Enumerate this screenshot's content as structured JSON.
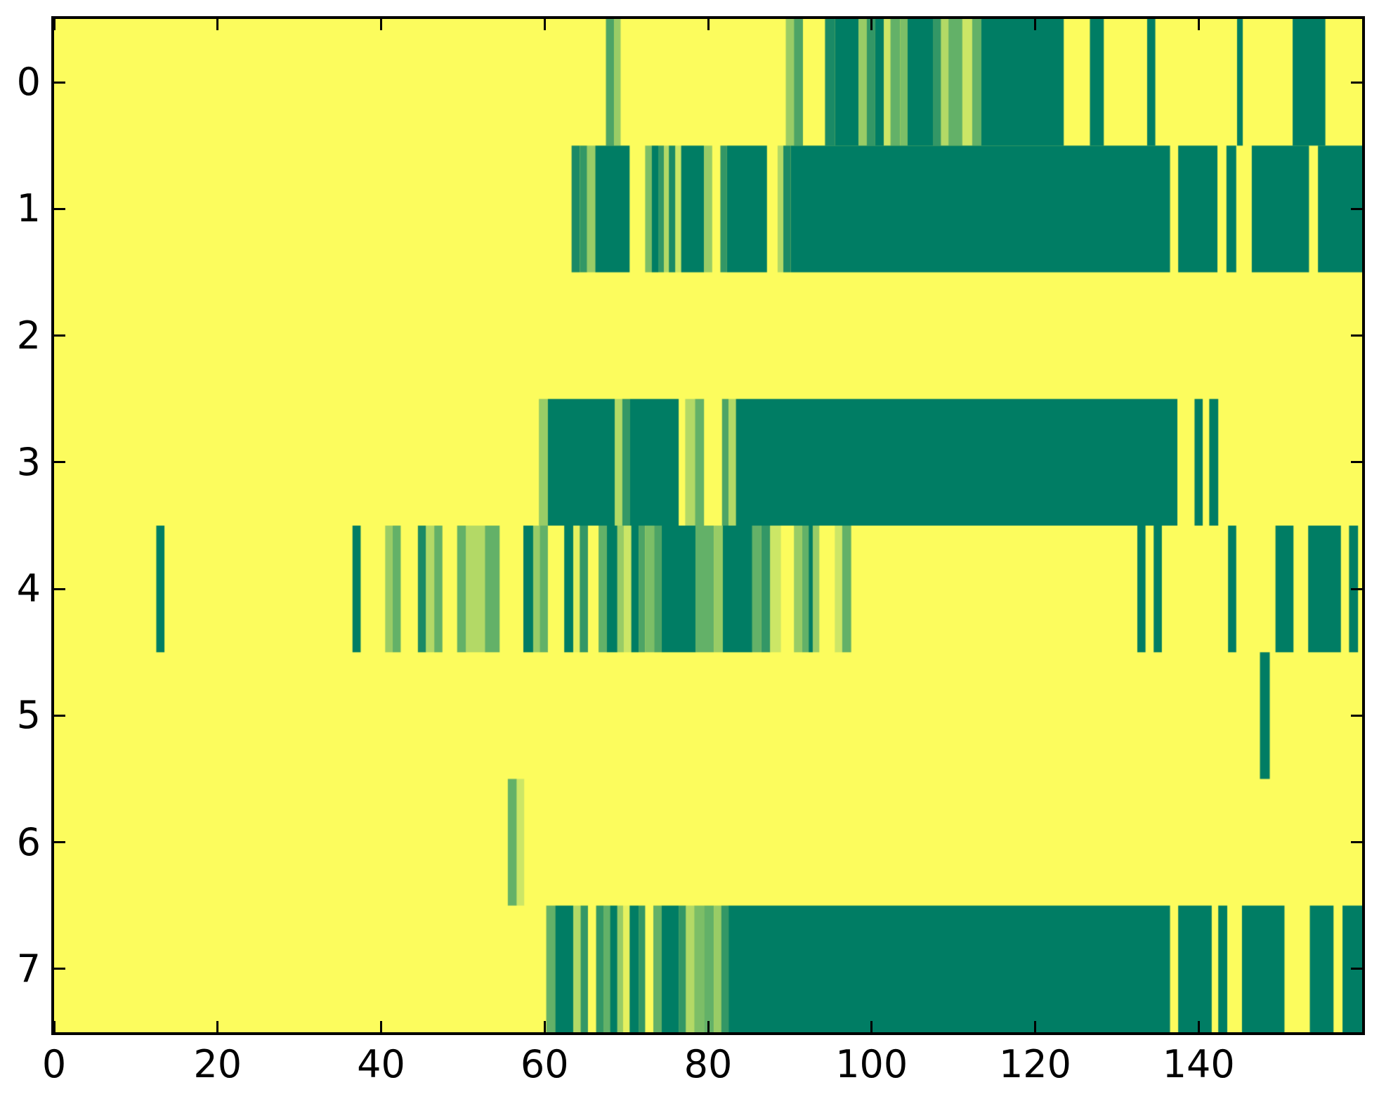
{
  "figure": {
    "background_color": "#ffffff",
    "axes_border_color": "#000000"
  },
  "chart_data": {
    "type": "heatmap",
    "title": "",
    "xlabel": "",
    "ylabel": "",
    "x_range": [
      0,
      160
    ],
    "n_rows": 8,
    "grid": false,
    "legend": "none",
    "x_tick_values": [
      0,
      20,
      40,
      60,
      80,
      100,
      120,
      140
    ],
    "x_tick_labels": [
      "0",
      "20",
      "40",
      "60",
      "80",
      "100",
      "120",
      "140"
    ],
    "y_tick_values": [
      0,
      1,
      2,
      3,
      4,
      5,
      6,
      7
    ],
    "y_tick_labels": [
      "0",
      "1",
      "2",
      "3",
      "4",
      "5",
      "6",
      "7"
    ],
    "colormap": "summer",
    "background_value_color": "#fcfc5d",
    "level_colors": {
      "v00": "#007d64",
      "v01": "#1a8a66",
      "v02": "#339766",
      "v03": "#4da466",
      "v04": "#63b168",
      "v05": "#7cbe67",
      "v06": "#99cc66",
      "v07": "#b3d966",
      "v08": "#cce666",
      "v09": "#e6f15f"
    },
    "rows": [
      {
        "y": 0,
        "segments": [
          [
            67.5,
            68.5,
            "v03"
          ],
          [
            68.5,
            69.3,
            "v06"
          ],
          [
            89.5,
            90.5,
            "v06"
          ],
          [
            90.5,
            91.6,
            "v03"
          ],
          [
            94.3,
            95.5,
            "v01"
          ],
          [
            95.5,
            98.4,
            "v00"
          ],
          [
            98.4,
            99.4,
            "v06"
          ],
          [
            99.4,
            100.4,
            "v02"
          ],
          [
            100.4,
            101.5,
            "v00"
          ],
          [
            101.5,
            102.3,
            "v08"
          ],
          [
            102.3,
            103.5,
            "v04"
          ],
          [
            103.5,
            104.4,
            "v05"
          ],
          [
            104.4,
            107.5,
            "v00"
          ],
          [
            107.5,
            108.5,
            "v02"
          ],
          [
            108.5,
            109.4,
            "v07"
          ],
          [
            109.4,
            111.1,
            "v04"
          ],
          [
            111.1,
            112.3,
            "v08"
          ],
          [
            112.3,
            113.4,
            "v04"
          ],
          [
            113.4,
            123.5,
            "v00"
          ],
          [
            126.7,
            128.4,
            "v00"
          ],
          [
            133.7,
            134.7,
            "v00"
          ],
          [
            144.7,
            145.4,
            "v00"
          ],
          [
            151.5,
            155.5,
            "v00"
          ]
        ]
      },
      {
        "y": 1,
        "segments": [
          [
            63.3,
            64.3,
            "v01"
          ],
          [
            64.3,
            65.2,
            "v02"
          ],
          [
            65.2,
            66.2,
            "v06"
          ],
          [
            66.2,
            70.4,
            "v00"
          ],
          [
            72.3,
            73.1,
            "v05"
          ],
          [
            73.1,
            73.9,
            "v00"
          ],
          [
            73.9,
            74.6,
            "v02"
          ],
          [
            74.6,
            75.2,
            "v07"
          ],
          [
            75.2,
            76.0,
            "v01"
          ],
          [
            76.0,
            76.7,
            "v08"
          ],
          [
            76.7,
            79.5,
            "v00"
          ],
          [
            79.5,
            80.5,
            "v06"
          ],
          [
            81.5,
            82.3,
            "v02"
          ],
          [
            82.3,
            87.2,
            "v00"
          ],
          [
            88.5,
            89.2,
            "v07"
          ],
          [
            89.2,
            90.1,
            "v01"
          ],
          [
            90.1,
            136.5,
            "v00"
          ],
          [
            137.5,
            142.3,
            "v00"
          ],
          [
            143.4,
            144.6,
            "v00"
          ],
          [
            146.5,
            153.5,
            "v00"
          ],
          [
            154.6,
            160,
            "v00"
          ]
        ]
      },
      {
        "y": 2,
        "segments": []
      },
      {
        "y": 3,
        "segments": [
          [
            59.3,
            60.4,
            "v06"
          ],
          [
            60.4,
            68.6,
            "v00"
          ],
          [
            68.6,
            69.5,
            "v07"
          ],
          [
            69.5,
            70.4,
            "v02"
          ],
          [
            70.4,
            76.4,
            "v00"
          ],
          [
            77.2,
            78.4,
            "v07"
          ],
          [
            78.4,
            79.5,
            "v04"
          ],
          [
            81.7,
            82.5,
            "v03"
          ],
          [
            82.5,
            83.4,
            "v07"
          ],
          [
            83.4,
            137.4,
            "v00"
          ],
          [
            139.5,
            140.5,
            "v00"
          ],
          [
            141.3,
            142.4,
            "v00"
          ]
        ]
      },
      {
        "y": 4,
        "segments": [
          [
            12.5,
            13.5,
            "v00"
          ],
          [
            36.5,
            37.5,
            "v00"
          ],
          [
            40.5,
            41.4,
            "v06"
          ],
          [
            41.4,
            42.4,
            "v04"
          ],
          [
            44.5,
            45.5,
            "v01"
          ],
          [
            45.5,
            46.5,
            "v07"
          ],
          [
            46.5,
            47.5,
            "v04"
          ],
          [
            49.3,
            50.4,
            "v04"
          ],
          [
            50.4,
            52.7,
            "v07"
          ],
          [
            52.7,
            54.5,
            "v04"
          ],
          [
            57.4,
            58.6,
            "v00"
          ],
          [
            58.6,
            59.4,
            "v06"
          ],
          [
            59.4,
            60.4,
            "v04"
          ],
          [
            62.4,
            63.5,
            "v00"
          ],
          [
            63.5,
            64.3,
            "v09"
          ],
          [
            64.3,
            65.3,
            "v02"
          ],
          [
            66.6,
            67.6,
            "v04"
          ],
          [
            67.6,
            68.9,
            "v00"
          ],
          [
            68.9,
            69.7,
            "v06"
          ],
          [
            69.7,
            70.6,
            "v08"
          ],
          [
            70.6,
            71.5,
            "v00"
          ],
          [
            71.5,
            72.3,
            "v03"
          ],
          [
            72.3,
            73.4,
            "v05"
          ],
          [
            73.4,
            74.3,
            "v03"
          ],
          [
            74.3,
            78.5,
            "v00"
          ],
          [
            78.5,
            80.7,
            "v04"
          ],
          [
            80.7,
            81.8,
            "v06"
          ],
          [
            81.8,
            85.4,
            "v00"
          ],
          [
            85.4,
            86.5,
            "v04"
          ],
          [
            86.5,
            87.6,
            "v02"
          ],
          [
            87.6,
            88.9,
            "v08"
          ],
          [
            90.5,
            91.5,
            "v06"
          ],
          [
            91.5,
            92.3,
            "v04"
          ],
          [
            92.3,
            92.8,
            "v00"
          ],
          [
            92.8,
            93.6,
            "v06"
          ],
          [
            95.5,
            96.4,
            "v08"
          ],
          [
            96.4,
            97.5,
            "v04"
          ],
          [
            132.5,
            133.5,
            "v00"
          ],
          [
            134.5,
            135.5,
            "v00"
          ],
          [
            143.6,
            144.6,
            "v00"
          ],
          [
            149.4,
            151.6,
            "v00"
          ],
          [
            153.4,
            157.4,
            "v00"
          ],
          [
            158.4,
            159.5,
            "v00"
          ]
        ]
      },
      {
        "y": 5,
        "segments": [
          [
            147.5,
            148.7,
            "v00"
          ]
        ]
      },
      {
        "y": 6,
        "segments": [
          [
            55.5,
            56.6,
            "v04"
          ],
          [
            56.6,
            57.5,
            "v08"
          ]
        ]
      },
      {
        "y": 7,
        "segments": [
          [
            60.2,
            61.3,
            "v04"
          ],
          [
            61.3,
            63.5,
            "v00"
          ],
          [
            63.5,
            64.4,
            "v07"
          ],
          [
            64.4,
            65.3,
            "v02"
          ],
          [
            66.3,
            67.2,
            "v02"
          ],
          [
            67.2,
            68.0,
            "v04"
          ],
          [
            68.0,
            68.9,
            "v00"
          ],
          [
            68.9,
            69.6,
            "v06"
          ],
          [
            69.6,
            70.4,
            "v09"
          ],
          [
            70.4,
            71.5,
            "v00"
          ],
          [
            71.5,
            72.3,
            "v02"
          ],
          [
            73.3,
            74.3,
            "v04"
          ],
          [
            74.3,
            76.4,
            "v00"
          ],
          [
            76.4,
            77.3,
            "v02"
          ],
          [
            77.3,
            78.3,
            "v07"
          ],
          [
            78.3,
            79.5,
            "v05"
          ],
          [
            79.5,
            80.7,
            "v04"
          ],
          [
            80.7,
            81.6,
            "v06"
          ],
          [
            81.6,
            82.5,
            "v02"
          ],
          [
            82.5,
            136.5,
            "v00"
          ],
          [
            137.5,
            141.6,
            "v00"
          ],
          [
            142.4,
            143.5,
            "v00"
          ],
          [
            145.3,
            150.5,
            "v00"
          ],
          [
            153.6,
            156.5,
            "v00"
          ],
          [
            157.6,
            160,
            "v00"
          ]
        ]
      }
    ]
  }
}
